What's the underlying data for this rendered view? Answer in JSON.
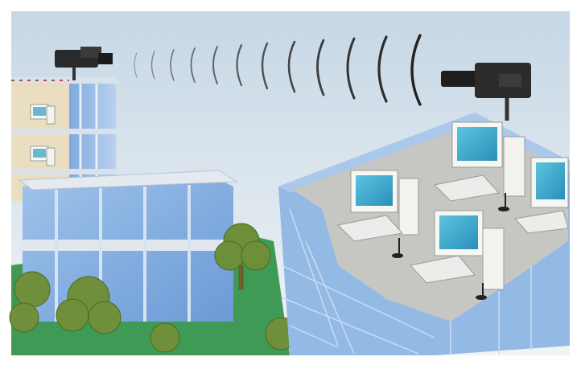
{
  "scene": {
    "description_text": "",
    "colors": {
      "sky_top": "#c9d9e6",
      "sky_bottom": "#eef3f6",
      "glass": "#8fb6e3",
      "glass_dark": "#5f8fcf",
      "frame": "#dfe6ee",
      "grass": "#3e9b56",
      "monitor_screen": "#3aa7c9",
      "pc_case": "#f2f2ef",
      "floor": "#c7c7c4",
      "wave": "#222222"
    },
    "icons": [
      "camera-icon",
      "camera-icon",
      "computer-icon",
      "tree-icon",
      "building-icon"
    ]
  }
}
